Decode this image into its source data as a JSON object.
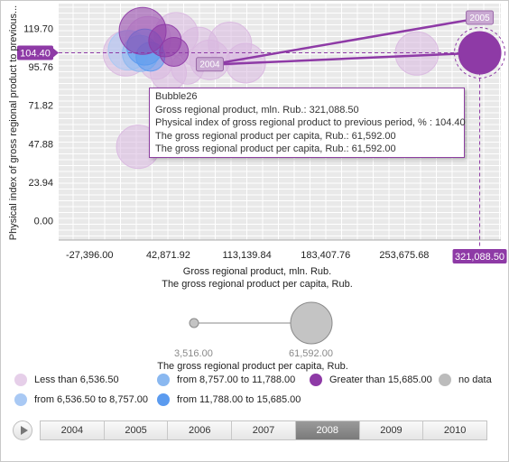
{
  "chart_data": {
    "type": "bubble",
    "xlabel": "Gross regional product, mln. Rub.",
    "xlabel_sub": "The gross regional product per capita, Rub.",
    "ylabel": "Physical index of gross regional product to previous...",
    "x_ticks": [
      "-27,396.00",
      "42,871.92",
      "113,139.84",
      "183,407.76",
      "253,675.68"
    ],
    "y_ticks": [
      "119.70",
      "95.76",
      "71.82",
      "47.88",
      "23.94",
      "0.00"
    ],
    "x_range": [
      -55000,
      340000
    ],
    "y_range": [
      -12,
      135
    ],
    "selected": {
      "name": "Bubble26",
      "x": 321088.5,
      "y": 104.4,
      "size": 61592.0,
      "x_label": "321,088.50",
      "y_label": "104.40",
      "trail": [
        {
          "year": "2004",
          "x": 80000,
          "y": 97
        },
        {
          "year": "2005",
          "x": 321088.5,
          "y": 126
        }
      ]
    },
    "bubbles": [
      {
        "x": 265000,
        "y": 104,
        "r": 24,
        "group": "lt"
      },
      {
        "x": 16000,
        "y": 46,
        "r": 24,
        "group": "lt"
      },
      {
        "x": 5000,
        "y": 104,
        "r": 25,
        "group": "lt"
      },
      {
        "x": 25000,
        "y": 113,
        "r": 25,
        "group": "lt"
      },
      {
        "x": 32000,
        "y": 98,
        "r": 18,
        "group": "lt"
      },
      {
        "x": 43000,
        "y": 92,
        "r": 20,
        "group": "lt"
      },
      {
        "x": 50000,
        "y": 116,
        "r": 24,
        "group": "lt"
      },
      {
        "x": 70000,
        "y": 108,
        "r": 22,
        "group": "lt"
      },
      {
        "x": 80000,
        "y": 100,
        "r": 22,
        "group": "lt"
      },
      {
        "x": 98000,
        "y": 110,
        "r": 24,
        "group": "lt"
      },
      {
        "x": 112000,
        "y": 98,
        "r": 22,
        "group": "lt"
      },
      {
        "x": 60000,
        "y": 95,
        "r": 18,
        "group": "lt"
      },
      {
        "x": 7000,
        "y": 106,
        "r": 22,
        "group": "b1"
      },
      {
        "x": 18000,
        "y": 104,
        "r": 20,
        "group": "b2"
      },
      {
        "x": 22000,
        "y": 108,
        "r": 20,
        "group": "b3"
      },
      {
        "x": 27000,
        "y": 102,
        "r": 16,
        "group": "b3"
      },
      {
        "x": 20000,
        "y": 118,
        "r": 26,
        "group": "gt"
      },
      {
        "x": 40000,
        "y": 112,
        "r": 18,
        "group": "gt"
      },
      {
        "x": 48000,
        "y": 105,
        "r": 16,
        "group": "gt"
      }
    ],
    "groups": {
      "lt": "#d9b8e0",
      "b1": "#a9c9f4",
      "b2": "#8ab8f0",
      "b3": "#5b9bef",
      "gt": "#8e3aa6"
    }
  },
  "tooltip": {
    "title": "Bubble26",
    "line1": "Gross regional product, mln. Rub.: 321,088.50",
    "line2": "Physical index of gross regional product to previous period, % : 104.40",
    "line3": "The gross regional product per capita, Rub.: 61,592.00",
    "line4": "The gross regional product per capita, Rub.: 61,592.00"
  },
  "size_legend": {
    "min_label": "3,516.00",
    "max_label": "61,592.00",
    "title": "The gross regional product per capita, Rub."
  },
  "legend": {
    "items": [
      {
        "label": "Less than 6,536.50",
        "color": "#e6cfe9"
      },
      {
        "label": "from 8,757.00 to 11,788.00",
        "color": "#8ab8f0"
      },
      {
        "label": "Greater than 15,685.00",
        "color": "#8e3aa6"
      },
      {
        "label": "no data",
        "color": "#bcbcbc"
      },
      {
        "label": "from 6,536.50 to 8,757.00",
        "color": "#a9c9f4"
      },
      {
        "label": "from 11,788.00 to 15,685.00",
        "color": "#5b9bef"
      }
    ]
  },
  "timeline": {
    "years": [
      "2004",
      "2005",
      "2006",
      "2007",
      "2008",
      "2009",
      "2010"
    ],
    "selected": "2008"
  }
}
